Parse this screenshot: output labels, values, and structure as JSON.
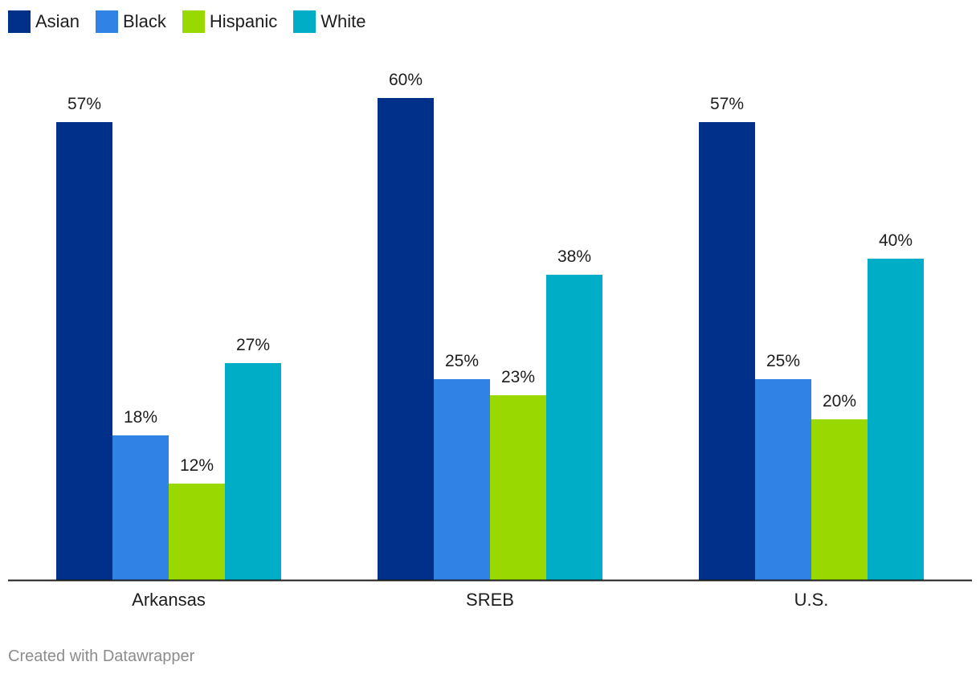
{
  "chart_data": {
    "type": "bar",
    "title": "",
    "xlabel": "",
    "ylabel": "",
    "categories": [
      "Arkansas",
      "SREB",
      "U.S."
    ],
    "series": [
      {
        "name": "Asian",
        "color": "#00308a",
        "values": [
          57,
          60,
          57
        ]
      },
      {
        "name": "Black",
        "color": "#3083e5",
        "values": [
          18,
          25,
          25
        ]
      },
      {
        "name": "Hispanic",
        "color": "#99d800",
        "values": [
          12,
          23,
          20
        ]
      },
      {
        "name": "White",
        "color": "#00adc6",
        "values": [
          27,
          38,
          40
        ]
      }
    ],
    "value_suffix": "%",
    "ylim": [
      0,
      60
    ],
    "grid": false,
    "legend": "top-left"
  },
  "footer": {
    "credit": "Created with Datawrapper"
  }
}
